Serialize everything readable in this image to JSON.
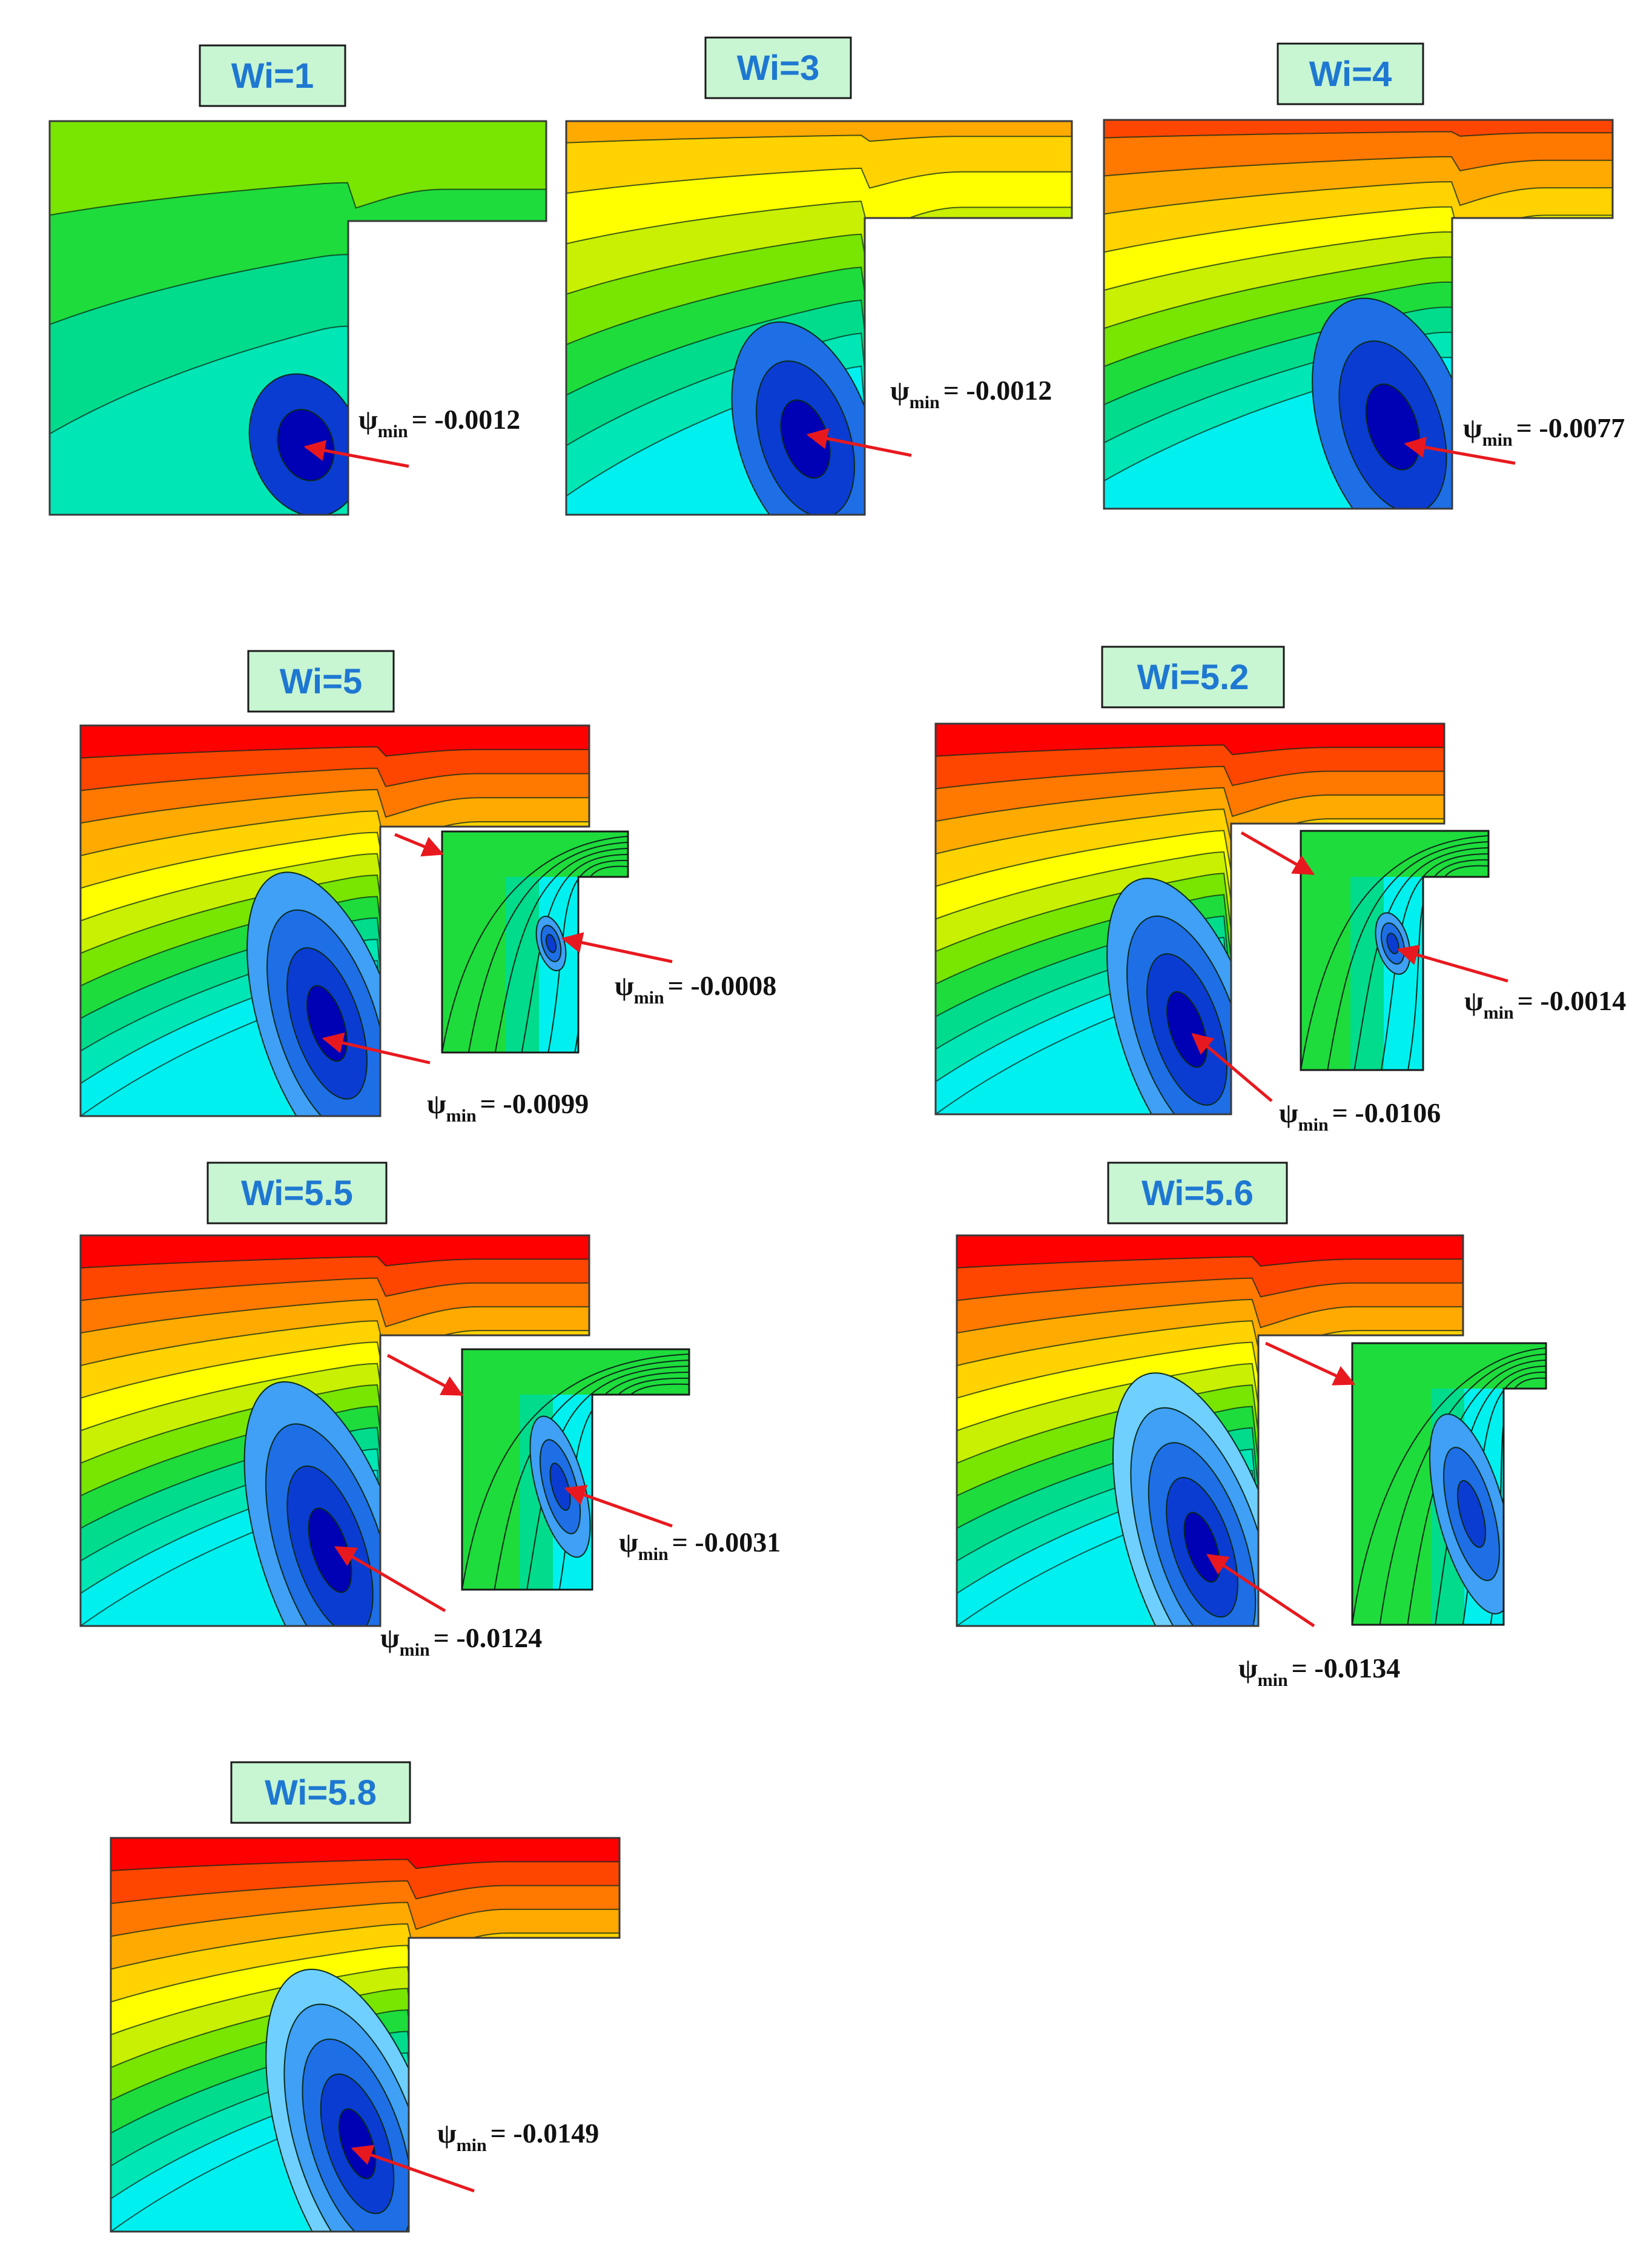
{
  "panels": [
    {
      "title": "Wi=1",
      "psi_symbol": "ψ",
      "psi_subscript": "min",
      "psi_value": "-0.0012",
      "level": 0.3,
      "vortex_strength": 0.25
    },
    {
      "title": "Wi=3",
      "psi_symbol": "ψ",
      "psi_subscript": "min",
      "psi_value": "-0.0012",
      "level": 0.65,
      "vortex_strength": 0.5
    },
    {
      "title": "Wi=4",
      "psi_symbol": "ψ",
      "psi_subscript": "min",
      "psi_value": "-0.0077",
      "level": 0.85,
      "vortex_strength": 0.6
    },
    {
      "title": "Wi=5",
      "psi_symbol": "ψ",
      "psi_subscript": "min",
      "psi_value": "-0.0099",
      "level": 1.0,
      "vortex_strength": 0.7,
      "inset": {
        "psi_symbol": "ψ",
        "psi_subscript": "min",
        "psi_value": "-0.0008"
      }
    },
    {
      "title": "Wi=5.2",
      "psi_symbol": "ψ",
      "psi_subscript": "min",
      "psi_value": "-0.0106",
      "level": 1.0,
      "vortex_strength": 0.75,
      "inset": {
        "psi_symbol": "ψ",
        "psi_subscript": "min",
        "psi_value": "-0.0014"
      }
    },
    {
      "title": "Wi=5.5",
      "psi_symbol": "ψ",
      "psi_subscript": "min",
      "psi_value": "-0.0124",
      "level": 1.0,
      "vortex_strength": 0.85,
      "inset": {
        "psi_symbol": "ψ",
        "psi_subscript": "min",
        "psi_value": "-0.0031"
      }
    },
    {
      "title": "Wi=5.6",
      "psi_symbol": "ψ",
      "psi_subscript": "min",
      "psi_value": "-0.0134",
      "level": 1.0,
      "vortex_strength": 0.9,
      "inset": {}
    },
    {
      "title": "Wi=5.8",
      "psi_symbol": "ψ",
      "psi_subscript": "min",
      "psi_value": "-0.0149",
      "level": 1.0,
      "vortex_strength": 1.0
    }
  ],
  "colors": {
    "label_bg": "#c8f5d2",
    "label_text": "#1e78d2",
    "arrow": "#e8191e",
    "contour_line": "#0a2a1a",
    "palette": [
      "#00f0f0",
      "#00e6b4",
      "#00dc8c",
      "#1edc3c",
      "#78e600",
      "#c8f000",
      "#ffff00",
      "#ffd200",
      "#ffaa00",
      "#ff7800",
      "#ff4600",
      "#ff0000"
    ],
    "vortex_palette": [
      "#6fd0ff",
      "#3fa0f5",
      "#1e6ee6",
      "#0a3cd2",
      "#0000b4"
    ]
  }
}
